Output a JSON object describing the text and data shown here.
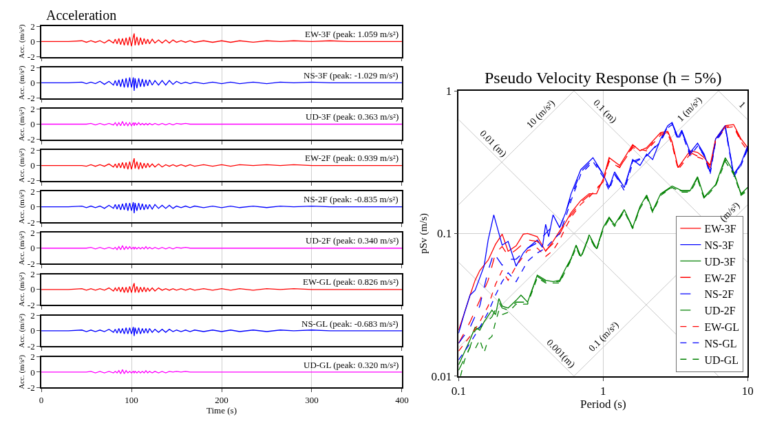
{
  "chart_data": [
    {
      "type": "line",
      "title": "Acceleration",
      "ylabel": "Acc. (m/s²)",
      "color": "#ff0000",
      "xlim": [
        0,
        400
      ],
      "ylim": [
        -2,
        2
      ],
      "xticks": [
        0,
        100,
        200,
        300,
        400
      ],
      "yticks": [
        -2,
        0,
        2
      ],
      "grid": "x",
      "tick_labels": "y",
      "annotations": [
        "EW-3F (peak: 1.059 m/s²)"
      ],
      "x": [
        0,
        30,
        45,
        50,
        55,
        60,
        65,
        70,
        75,
        80,
        82,
        84,
        86,
        88,
        90,
        92,
        94,
        96,
        98,
        100,
        102,
        103,
        104,
        106,
        108,
        110,
        112,
        114,
        116,
        118,
        120,
        123,
        126,
        130,
        134,
        138,
        142,
        146,
        150,
        155,
        160,
        165,
        170,
        180,
        190,
        200,
        210,
        220,
        235,
        250,
        265,
        280,
        300,
        320,
        340,
        360,
        380,
        400
      ],
      "values": [
        0,
        0,
        0.1,
        -0.1,
        0.1,
        -0.1,
        0.1,
        -0.2,
        0.2,
        -0.2,
        0.3,
        -0.3,
        0.4,
        -0.4,
        0.4,
        -0.5,
        0.5,
        -0.5,
        0.6,
        -0.6,
        0.6,
        1.059,
        -0.5,
        0.6,
        -0.5,
        0.5,
        -0.4,
        0.4,
        -0.3,
        0.3,
        -0.3,
        0.3,
        -0.2,
        0.2,
        -0.2,
        0.2,
        -0.2,
        0.2,
        -0.1,
        0.1,
        -0.1,
        0.1,
        -0.1,
        0.1,
        -0.1,
        0.1,
        -0.1,
        0.1,
        -0.1,
        0.1,
        0,
        0.1,
        0,
        0.1,
        0,
        0,
        0,
        0
      ]
    },
    {
      "type": "line",
      "ylabel": "Acc. (m/s²)",
      "color": "#0000ff",
      "xlim": [
        0,
        400
      ],
      "ylim": [
        -2,
        2
      ],
      "xticks": [
        0,
        100,
        200,
        300,
        400
      ],
      "yticks": [
        -2,
        0,
        2
      ],
      "grid": "x",
      "tick_labels": "y",
      "annotations": [
        "NS-3F (peak: -1.029 m/s²)"
      ],
      "x": [
        0,
        30,
        45,
        50,
        55,
        60,
        65,
        70,
        75,
        80,
        82,
        84,
        86,
        88,
        90,
        92,
        94,
        96,
        98,
        100,
        102,
        103,
        104,
        106,
        108,
        110,
        112,
        114,
        116,
        118,
        120,
        123,
        126,
        130,
        134,
        138,
        142,
        146,
        150,
        155,
        160,
        165,
        170,
        180,
        190,
        200,
        210,
        220,
        235,
        250,
        265,
        280,
        300,
        320,
        340,
        360,
        380,
        400
      ],
      "values": [
        0,
        0,
        0.1,
        -0.1,
        0.1,
        -0.1,
        0.2,
        -0.2,
        0.2,
        -0.3,
        0.3,
        -0.4,
        0.4,
        -0.5,
        0.5,
        -0.6,
        0.6,
        -0.6,
        0.7,
        -0.6,
        0.7,
        -1.029,
        0.6,
        -0.7,
        0.6,
        -0.5,
        0.5,
        -0.5,
        0.4,
        -0.4,
        0.4,
        -0.3,
        0.3,
        -0.3,
        0.3,
        -0.3,
        0.3,
        -0.2,
        0.2,
        -0.1,
        0.1,
        -0.1,
        0.1,
        -0.1,
        0.1,
        -0.1,
        0.1,
        -0.1,
        0.1,
        -0.1,
        0.1,
        0,
        0.1,
        0,
        0,
        0,
        0,
        0
      ]
    },
    {
      "type": "line",
      "ylabel": "Acc. (m/s²)",
      "color": "#ff00ff",
      "xlim": [
        0,
        400
      ],
      "ylim": [
        -2,
        2
      ],
      "xticks": [
        0,
        100,
        200,
        300,
        400
      ],
      "yticks": [
        -2,
        0,
        2
      ],
      "grid": "x",
      "tick_labels": "y",
      "annotations": [
        "UD-3F (peak: 0.363 m/s²)"
      ],
      "x": [
        0,
        30,
        45,
        50,
        55,
        60,
        65,
        70,
        75,
        80,
        82,
        84,
        86,
        88,
        90,
        92,
        94,
        96,
        98,
        100,
        102,
        103,
        104,
        106,
        108,
        110,
        112,
        114,
        116,
        118,
        120,
        123,
        126,
        130,
        134,
        138,
        142,
        146,
        150,
        155,
        160,
        165,
        170,
        180,
        190,
        200,
        210,
        220,
        235,
        250,
        265,
        280,
        300,
        320,
        340,
        360,
        380,
        400
      ],
      "values": [
        0,
        0,
        0,
        0,
        0.1,
        -0.1,
        0.1,
        -0.1,
        0.1,
        -0.1,
        0.2,
        -0.2,
        0.2,
        -0.2,
        0.363,
        -0.2,
        0.2,
        -0.2,
        0.2,
        -0.2,
        0.2,
        -0.2,
        0.2,
        -0.1,
        0.2,
        -0.1,
        0.1,
        -0.1,
        0.1,
        -0.1,
        0.1,
        -0.1,
        0.1,
        -0.1,
        0.1,
        -0.1,
        0.1,
        -0.1,
        0.1,
        0,
        0.1,
        0,
        0,
        0,
        0,
        0,
        0,
        0,
        0,
        0,
        0,
        0,
        0,
        0,
        0,
        0,
        0,
        0
      ]
    },
    {
      "type": "line",
      "ylabel": "Acc. (m/s²)",
      "color": "#ff0000",
      "xlim": [
        0,
        400
      ],
      "ylim": [
        -2,
        2
      ],
      "xticks": [
        0,
        100,
        200,
        300,
        400
      ],
      "yticks": [
        -2,
        0,
        2
      ],
      "grid": "x",
      "tick_labels": "y",
      "annotations": [
        "EW-2F (peak: 0.939 m/s²)"
      ],
      "x": [
        0,
        30,
        45,
        50,
        55,
        60,
        65,
        70,
        75,
        80,
        82,
        84,
        86,
        88,
        90,
        92,
        94,
        96,
        98,
        100,
        102,
        103,
        104,
        106,
        108,
        110,
        112,
        114,
        116,
        118,
        120,
        123,
        126,
        130,
        134,
        138,
        142,
        146,
        150,
        155,
        160,
        165,
        170,
        180,
        190,
        200,
        210,
        220,
        235,
        250,
        265,
        280,
        300,
        320,
        340,
        360,
        380,
        400
      ],
      "values": [
        0,
        0,
        0,
        -0.1,
        0.1,
        -0.1,
        0.1,
        -0.1,
        0.2,
        -0.2,
        0.2,
        -0.3,
        0.3,
        -0.3,
        0.4,
        -0.4,
        0.4,
        -0.5,
        0.5,
        -0.5,
        0.5,
        0.939,
        -0.4,
        0.5,
        -0.5,
        0.4,
        -0.4,
        0.3,
        -0.3,
        0.3,
        -0.2,
        0.2,
        -0.2,
        0.2,
        -0.2,
        0.1,
        -0.1,
        0.1,
        -0.1,
        0.1,
        -0.1,
        0.1,
        -0.1,
        0.1,
        -0.1,
        0.1,
        -0.1,
        0.1,
        0,
        0.1,
        0,
        0.1,
        0,
        0,
        0,
        0,
        0,
        0
      ]
    },
    {
      "type": "line",
      "ylabel": "Acc. (m/s²)",
      "color": "#0000ff",
      "xlim": [
        0,
        400
      ],
      "ylim": [
        -2,
        2
      ],
      "xticks": [
        0,
        100,
        200,
        300,
        400
      ],
      "yticks": [
        -2,
        0,
        2
      ],
      "grid": "x",
      "tick_labels": "y",
      "annotations": [
        "NS-2F (peak: -0.835 m/s²)"
      ],
      "x": [
        0,
        30,
        45,
        50,
        55,
        60,
        65,
        70,
        75,
        80,
        82,
        84,
        86,
        88,
        90,
        92,
        94,
        96,
        98,
        100,
        102,
        103,
        104,
        106,
        108,
        110,
        112,
        114,
        116,
        118,
        120,
        123,
        126,
        130,
        134,
        138,
        142,
        146,
        150,
        155,
        160,
        165,
        170,
        180,
        190,
        200,
        210,
        220,
        235,
        250,
        265,
        280,
        300,
        320,
        340,
        360,
        380,
        400
      ],
      "values": [
        0,
        0,
        0.1,
        -0.1,
        0.1,
        -0.1,
        0.1,
        -0.2,
        0.2,
        -0.2,
        0.3,
        -0.3,
        0.3,
        -0.4,
        0.4,
        -0.4,
        0.5,
        -0.5,
        0.5,
        -0.5,
        0.6,
        -0.835,
        0.5,
        -0.5,
        0.5,
        -0.4,
        0.4,
        -0.4,
        0.3,
        -0.3,
        0.3,
        -0.3,
        0.3,
        -0.2,
        0.2,
        -0.2,
        0.2,
        -0.2,
        0.1,
        -0.1,
        0.1,
        -0.1,
        0.1,
        -0.1,
        0.1,
        -0.1,
        0.1,
        -0.1,
        0.1,
        -0.1,
        0.1,
        0,
        0.1,
        0,
        0,
        0,
        0,
        0
      ]
    },
    {
      "type": "line",
      "ylabel": "Acc. (m/s²)",
      "color": "#ff00ff",
      "xlim": [
        0,
        400
      ],
      "ylim": [
        -2,
        2
      ],
      "xticks": [
        0,
        100,
        200,
        300,
        400
      ],
      "yticks": [
        -2,
        0,
        2
      ],
      "grid": "x",
      "tick_labels": "y",
      "annotations": [
        "UD-2F (peak: 0.340 m/s²)"
      ],
      "x": [
        0,
        30,
        45,
        50,
        55,
        60,
        65,
        70,
        75,
        80,
        82,
        84,
        86,
        88,
        90,
        92,
        94,
        96,
        98,
        100,
        102,
        103,
        104,
        106,
        108,
        110,
        112,
        114,
        116,
        118,
        120,
        123,
        126,
        130,
        134,
        138,
        142,
        146,
        150,
        155,
        160,
        165,
        170,
        180,
        190,
        200,
        210,
        220,
        235,
        250,
        265,
        280,
        300,
        320,
        340,
        360,
        380,
        400
      ],
      "values": [
        0,
        0,
        0,
        0,
        0.1,
        -0.1,
        0.1,
        -0.1,
        0.1,
        -0.1,
        0.1,
        -0.2,
        0.2,
        -0.2,
        0.34,
        -0.2,
        0.2,
        -0.1,
        0.2,
        -0.1,
        0.1,
        -0.1,
        0.1,
        -0.1,
        0.1,
        -0.1,
        0.1,
        -0.1,
        0.2,
        -0.1,
        0.1,
        -0.1,
        0.1,
        -0.1,
        0.1,
        -0.1,
        0.1,
        -0.1,
        0.1,
        0,
        0.1,
        0,
        0,
        0,
        0,
        0,
        0,
        0,
        0,
        0,
        0,
        0,
        0,
        0,
        0,
        0,
        0,
        0
      ]
    },
    {
      "type": "line",
      "ylabel": "Acc. (m/s²)",
      "color": "#ff0000",
      "xlim": [
        0,
        400
      ],
      "ylim": [
        -2,
        2
      ],
      "xticks": [
        0,
        100,
        200,
        300,
        400
      ],
      "yticks": [
        -2,
        0,
        2
      ],
      "grid": "x",
      "tick_labels": "y",
      "annotations": [
        "EW-GL (peak: 0.826 m/s²)"
      ],
      "x": [
        0,
        30,
        45,
        50,
        55,
        60,
        65,
        70,
        75,
        80,
        82,
        84,
        86,
        88,
        90,
        92,
        94,
        96,
        98,
        100,
        102,
        103,
        104,
        106,
        108,
        110,
        112,
        114,
        116,
        118,
        120,
        123,
        126,
        130,
        134,
        138,
        142,
        146,
        150,
        155,
        160,
        165,
        170,
        180,
        190,
        200,
        210,
        220,
        235,
        250,
        265,
        280,
        300,
        320,
        340,
        360,
        380,
        400
      ],
      "values": [
        0,
        0,
        0.1,
        -0.1,
        0.1,
        -0.1,
        0.1,
        -0.1,
        0.2,
        -0.2,
        0.2,
        -0.2,
        0.3,
        -0.3,
        0.3,
        -0.4,
        0.3,
        -0.4,
        0.4,
        -0.4,
        0.5,
        0.826,
        -0.4,
        0.4,
        -0.4,
        0.3,
        -0.3,
        0.3,
        -0.3,
        0.2,
        -0.2,
        0.2,
        -0.2,
        0.2,
        -0.1,
        0.1,
        -0.1,
        0.1,
        -0.1,
        0.1,
        -0.1,
        0.1,
        -0.1,
        0.1,
        -0.1,
        0.1,
        -0.1,
        0.1,
        -0.1,
        0.1,
        0,
        0.1,
        0,
        0,
        0,
        0,
        0,
        0
      ]
    },
    {
      "type": "line",
      "ylabel": "Acc. (m/s²)",
      "color": "#0000ff",
      "xlim": [
        0,
        400
      ],
      "ylim": [
        -2,
        2
      ],
      "xticks": [
        0,
        100,
        200,
        300,
        400
      ],
      "yticks": [
        -2,
        0,
        2
      ],
      "grid": "x",
      "tick_labels": "y",
      "annotations": [
        "NS-GL (peak: -0.683 m/s²)"
      ],
      "x": [
        0,
        30,
        45,
        50,
        55,
        60,
        65,
        70,
        75,
        80,
        82,
        84,
        86,
        88,
        90,
        92,
        94,
        96,
        98,
        100,
        102,
        103,
        104,
        106,
        108,
        110,
        112,
        114,
        116,
        118,
        120,
        123,
        126,
        130,
        134,
        138,
        142,
        146,
        150,
        155,
        160,
        165,
        170,
        180,
        190,
        200,
        210,
        220,
        235,
        250,
        265,
        280,
        300,
        320,
        340,
        360,
        380,
        400
      ],
      "values": [
        0,
        0,
        0.1,
        -0.1,
        0.1,
        -0.1,
        0.1,
        -0.1,
        0.2,
        -0.2,
        0.2,
        -0.3,
        0.3,
        -0.3,
        0.3,
        -0.4,
        0.4,
        -0.4,
        0.4,
        -0.4,
        0.5,
        -0.683,
        0.4,
        -0.4,
        0.4,
        -0.4,
        0.3,
        -0.3,
        0.3,
        -0.3,
        0.3,
        -0.2,
        0.2,
        -0.2,
        0.2,
        -0.2,
        0.2,
        -0.1,
        0.1,
        -0.1,
        0.1,
        -0.1,
        0.1,
        -0.1,
        0.1,
        -0.1,
        0.1,
        -0.1,
        0.1,
        -0.1,
        0.1,
        0,
        0.1,
        0,
        0,
        0,
        0,
        0
      ]
    },
    {
      "type": "line",
      "ylabel": "Acc. (m/s²)",
      "xlabel": "Time (s)",
      "color": "#ff00ff",
      "xlim": [
        0,
        400
      ],
      "ylim": [
        -2,
        2
      ],
      "xticks": [
        0,
        100,
        200,
        300,
        400
      ],
      "yticks": [
        -2,
        0,
        2
      ],
      "grid": "x",
      "annotations": [
        "UD-GL (peak: 0.320 m/s²)"
      ],
      "x": [
        0,
        30,
        45,
        50,
        55,
        60,
        65,
        70,
        75,
        80,
        82,
        84,
        86,
        88,
        90,
        92,
        94,
        96,
        98,
        100,
        102,
        103,
        104,
        106,
        108,
        110,
        112,
        114,
        116,
        118,
        120,
        123,
        126,
        130,
        134,
        138,
        142,
        146,
        150,
        155,
        160,
        165,
        170,
        180,
        190,
        200,
        210,
        220,
        235,
        250,
        265,
        280,
        300,
        320,
        340,
        360,
        380,
        400
      ],
      "values": [
        0,
        0,
        0,
        0,
        0.1,
        -0.1,
        0.1,
        -0.1,
        0.1,
        -0.1,
        0.1,
        -0.1,
        0.2,
        -0.2,
        0.32,
        -0.2,
        0.2,
        -0.1,
        0.1,
        -0.1,
        0.1,
        -0.1,
        0.1,
        -0.1,
        0.1,
        -0.1,
        0.1,
        -0.1,
        0.2,
        -0.1,
        0.1,
        -0.1,
        0.1,
        -0.1,
        0.1,
        -0.1,
        0.1,
        0,
        0.1,
        0,
        0.1,
        0,
        0,
        0,
        0,
        0,
        0,
        0,
        0,
        0,
        0,
        0,
        0,
        0,
        0,
        0,
        0,
        0
      ]
    },
    {
      "type": "line",
      "title": "Pseudo Velocity Response (h = 5%)",
      "xlabel": "Period (s)",
      "ylabel": "pSv (m/s)",
      "log": "xy",
      "xlim": [
        0.1,
        10
      ],
      "ylim": [
        0.01,
        1
      ],
      "xticks": [
        0.1,
        1,
        10
      ],
      "yticks": [
        0.01,
        0.1,
        1
      ],
      "grid": true,
      "legend": "bottom right",
      "annotations": [
        {
          "text": "(m/s²)",
          "x": 8.2,
          "y": 0.1304
        }
      ],
      "series": [
        {
          "name": "0.01 (m)",
          "color": "#c8c8c8",
          "x": [
            0.1,
            0.16,
            6.28
          ],
          "values": [
            0.628,
            0.3925,
            0.01
          ]
        },
        {
          "name": "0.1 (m)",
          "color": "#c8c8c8",
          "x": [
            0.628,
            0.95,
            10
          ],
          "values": [
            1,
            0.661,
            0.0628
          ]
        },
        {
          "name": "0.001(m)",
          "color": "#c8c8c8",
          "x": [
            0.1,
            0.47,
            0.628
          ],
          "values": [
            0.0628,
            0.01336,
            0.01
          ]
        },
        {
          "name": "1",
          "color": "#c8c8c8",
          "x": [
            6.28,
            8.5,
            10
          ],
          "values": [
            1,
            0.739,
            0.628
          ]
        },
        {
          "name": "10 (m/s²)",
          "color": "#c8c8c8",
          "x": [
            0.1,
            0.4,
            0.628
          ],
          "values": [
            0.159,
            0.636,
            1
          ]
        },
        {
          "name": "1 (m/s²)",
          "color": "#c8c8c8",
          "x": [
            0.1,
            4.3,
            6.28
          ],
          "values": [
            0.0159,
            0.684,
            1
          ]
        },
        {
          "name": "0.1 (m/s²)",
          "color": "#c8c8c8",
          "x": [
            0.628,
            1.1,
            8.2,
            10
          ],
          "values": [
            0.01,
            0.0175,
            0.1304,
            0.159
          ]
        },
        {
          "name": "EW-3F",
          "color": "#ff0000",
          "line_style": "solid",
          "x": [
            0.1,
            0.11,
            0.12,
            0.13,
            0.14,
            0.15,
            0.16,
            0.18,
            0.2,
            0.22,
            0.25,
            0.28,
            0.3,
            0.35,
            0.4,
            0.45,
            0.5,
            0.55,
            0.6,
            0.7,
            0.8,
            0.9,
            1,
            1.1,
            1.3,
            1.6,
            1.8,
            2,
            2.5,
            2.8,
            3,
            3.3,
            4,
            4.5,
            5,
            5.5,
            6,
            7,
            8,
            9,
            10
          ],
          "values": [
            0.021,
            0.028,
            0.037,
            0.047,
            0.055,
            0.06,
            0.065,
            0.084,
            0.099,
            0.075,
            0.082,
            0.099,
            0.1,
            0.095,
            0.075,
            0.088,
            0.104,
            0.12,
            0.14,
            0.17,
            0.19,
            0.19,
            0.24,
            0.34,
            0.3,
            0.42,
            0.38,
            0.4,
            0.51,
            0.52,
            0.44,
            0.29,
            0.38,
            0.37,
            0.34,
            0.3,
            0.46,
            0.57,
            0.58,
            0.46,
            0.4
          ]
        },
        {
          "name": "NS-3F",
          "color": "#0000ff",
          "line_style": "solid",
          "x": [
            0.1,
            0.11,
            0.12,
            0.13,
            0.15,
            0.16,
            0.175,
            0.2,
            0.22,
            0.25,
            0.28,
            0.3,
            0.35,
            0.38,
            0.4,
            0.42,
            0.45,
            0.5,
            0.55,
            0.6,
            0.7,
            0.85,
            1,
            1.1,
            1.2,
            1.4,
            1.6,
            1.8,
            2,
            2.2,
            2.5,
            2.8,
            3,
            3.3,
            3.5,
            4,
            4.5,
            5,
            5.5,
            6,
            7,
            8,
            9,
            10
          ],
          "values": [
            0.02,
            0.028,
            0.037,
            0.04,
            0.059,
            0.09,
            0.135,
            0.083,
            0.088,
            0.059,
            0.073,
            0.079,
            0.09,
            0.08,
            0.116,
            0.095,
            0.135,
            0.11,
            0.14,
            0.19,
            0.28,
            0.34,
            0.26,
            0.21,
            0.27,
            0.21,
            0.33,
            0.3,
            0.36,
            0.33,
            0.46,
            0.57,
            0.6,
            0.47,
            0.53,
            0.37,
            0.43,
            0.36,
            0.27,
            0.46,
            0.57,
            0.26,
            0.31,
            0.41
          ]
        },
        {
          "name": "UD-3F",
          "color": "#008000",
          "line_style": "solid",
          "x": [
            0.1,
            0.12,
            0.13,
            0.14,
            0.15,
            0.17,
            0.18,
            0.19,
            0.2,
            0.22,
            0.25,
            0.27,
            0.3,
            0.35,
            0.4,
            0.45,
            0.5,
            0.55,
            0.6,
            0.65,
            0.7,
            0.75,
            0.8,
            0.9,
            1,
            1.1,
            1.2,
            1.4,
            1.6,
            1.8,
            2,
            2.2,
            2.5,
            3,
            3.5,
            4,
            4.5,
            5,
            6,
            7,
            8,
            9,
            10
          ],
          "values": [
            0.012,
            0.018,
            0.022,
            0.021,
            0.024,
            0.029,
            0.027,
            0.035,
            0.031,
            0.03,
            0.034,
            0.037,
            0.033,
            0.051,
            0.047,
            0.046,
            0.047,
            0.057,
            0.067,
            0.083,
            0.069,
            0.08,
            0.098,
            0.078,
            0.11,
            0.13,
            0.115,
            0.147,
            0.11,
            0.155,
            0.186,
            0.144,
            0.19,
            0.215,
            0.2,
            0.2,
            0.25,
            0.18,
            0.22,
            0.34,
            0.27,
            0.19,
            0.21
          ]
        },
        {
          "name": "EW-2F",
          "color": "#ff0000",
          "line_style": "dashed",
          "x": [
            0.1,
            0.12,
            0.14,
            0.16,
            0.18,
            0.2,
            0.22,
            0.25,
            0.3,
            0.35,
            0.4,
            0.45,
            0.5,
            0.55,
            0.6,
            0.7,
            0.8,
            1,
            1.1,
            1.3,
            1.6,
            2,
            2.5,
            2.8,
            3,
            3.3,
            4,
            5,
            5.5,
            6,
            7,
            8,
            9,
            10
          ],
          "values": [
            0.017,
            0.024,
            0.034,
            0.047,
            0.073,
            0.081,
            0.07,
            0.077,
            0.09,
            0.088,
            0.076,
            0.085,
            0.099,
            0.12,
            0.135,
            0.165,
            0.185,
            0.23,
            0.33,
            0.29,
            0.41,
            0.39,
            0.5,
            0.51,
            0.43,
            0.29,
            0.37,
            0.33,
            0.3,
            0.45,
            0.56,
            0.57,
            0.45,
            0.39
          ]
        },
        {
          "name": "NS-2F",
          "color": "#0000ff",
          "line_style": "dashed",
          "x": [
            0.1,
            0.12,
            0.14,
            0.16,
            0.175,
            0.2,
            0.22,
            0.25,
            0.3,
            0.35,
            0.4,
            0.45,
            0.5,
            0.55,
            0.6,
            0.7,
            0.85,
            1,
            1.1,
            1.2,
            1.4,
            1.6,
            2,
            2.5,
            2.8,
            3,
            3.3,
            3.5,
            4,
            4.5,
            5,
            5.5,
            6,
            7,
            8,
            9,
            10
          ],
          "values": [
            0.017,
            0.022,
            0.031,
            0.055,
            0.073,
            0.06,
            0.066,
            0.066,
            0.079,
            0.086,
            0.1,
            0.113,
            0.11,
            0.14,
            0.18,
            0.27,
            0.33,
            0.26,
            0.21,
            0.26,
            0.21,
            0.32,
            0.35,
            0.45,
            0.56,
            0.59,
            0.46,
            0.52,
            0.36,
            0.42,
            0.35,
            0.27,
            0.45,
            0.56,
            0.26,
            0.3,
            0.4
          ]
        },
        {
          "name": "UD-2F",
          "color": "#008000",
          "line_style": "dashed",
          "x": [
            0.1,
            0.12,
            0.13,
            0.15,
            0.17,
            0.19,
            0.2,
            0.22,
            0.25,
            0.3,
            0.35,
            0.4,
            0.5,
            0.55,
            0.6,
            0.65,
            0.7,
            0.8,
            0.9,
            1,
            1.1,
            1.2,
            1.4,
            1.6,
            1.8,
            2,
            2.2,
            2.5,
            3,
            3.5,
            4,
            4.5,
            5,
            6,
            7,
            8,
            9,
            10
          ],
          "values": [
            0.011,
            0.016,
            0.021,
            0.023,
            0.026,
            0.033,
            0.03,
            0.029,
            0.033,
            0.033,
            0.05,
            0.046,
            0.046,
            0.056,
            0.066,
            0.082,
            0.068,
            0.097,
            0.077,
            0.109,
            0.128,
            0.114,
            0.145,
            0.109,
            0.153,
            0.184,
            0.143,
            0.188,
            0.212,
            0.198,
            0.198,
            0.245,
            0.178,
            0.218,
            0.33,
            0.265,
            0.188,
            0.205
          ]
        },
        {
          "name": "EW-GL",
          "color": "#ff0000",
          "line_style": "dotted",
          "x": [
            0.1,
            0.12,
            0.14,
            0.16,
            0.18,
            0.2,
            0.22,
            0.25,
            0.3,
            0.35,
            0.4,
            0.45,
            0.5,
            0.55,
            0.6,
            0.7,
            0.8,
            1,
            1.1,
            1.3,
            1.6,
            2,
            2.5,
            2.8,
            3,
            3.3,
            4,
            5,
            5.5,
            6,
            7,
            8,
            9,
            10
          ],
          "values": [
            0.015,
            0.019,
            0.024,
            0.031,
            0.044,
            0.055,
            0.047,
            0.059,
            0.076,
            0.079,
            0.069,
            0.076,
            0.09,
            0.11,
            0.13,
            0.16,
            0.18,
            0.23,
            0.32,
            0.29,
            0.4,
            0.38,
            0.49,
            0.5,
            0.42,
            0.28,
            0.36,
            0.33,
            0.29,
            0.44,
            0.55,
            0.56,
            0.44,
            0.38
          ]
        },
        {
          "name": "NS-GL",
          "color": "#0000ff",
          "line_style": "dotted",
          "x": [
            0.1,
            0.12,
            0.14,
            0.16,
            0.18,
            0.2,
            0.22,
            0.25,
            0.3,
            0.35,
            0.4,
            0.45,
            0.5,
            0.55,
            0.6,
            0.7,
            0.85,
            1,
            1.1,
            1.2,
            1.4,
            1.6,
            2,
            2.5,
            2.8,
            3,
            3.3,
            3.5,
            4,
            4.5,
            5,
            5.5,
            6,
            7,
            8,
            9,
            10
          ],
          "values": [
            0.013,
            0.017,
            0.022,
            0.028,
            0.037,
            0.046,
            0.053,
            0.046,
            0.064,
            0.073,
            0.079,
            0.09,
            0.1,
            0.13,
            0.17,
            0.26,
            0.32,
            0.25,
            0.2,
            0.26,
            0.2,
            0.31,
            0.35,
            0.44,
            0.55,
            0.58,
            0.45,
            0.51,
            0.35,
            0.41,
            0.35,
            0.26,
            0.44,
            0.55,
            0.25,
            0.3,
            0.39
          ]
        },
        {
          "name": "UD-GL",
          "color": "#008000",
          "line_style": "dotted",
          "x": [
            0.103,
            0.11,
            0.12,
            0.13,
            0.14,
            0.15,
            0.16,
            0.17,
            0.18,
            0.19,
            0.2,
            0.22,
            0.25,
            0.3,
            0.35,
            0.4,
            0.5,
            0.55,
            0.6,
            0.65,
            0.7,
            0.8,
            0.9,
            1,
            1.1,
            1.2,
            1.4,
            1.6,
            1.8,
            2,
            2.2,
            2.5,
            3,
            3.5,
            4,
            4.5,
            5,
            6,
            7,
            8,
            9,
            10
          ],
          "values": [
            0.01,
            0.013,
            0.016,
            0.0155,
            0.018,
            0.0146,
            0.018,
            0.019,
            0.024,
            0.029,
            0.027,
            0.028,
            0.032,
            0.032,
            0.049,
            0.045,
            0.045,
            0.055,
            0.065,
            0.08,
            0.067,
            0.095,
            0.076,
            0.107,
            0.126,
            0.112,
            0.143,
            0.108,
            0.15,
            0.18,
            0.14,
            0.185,
            0.21,
            0.195,
            0.195,
            0.24,
            0.175,
            0.215,
            0.32,
            0.26,
            0.185,
            0.2
          ]
        }
      ]
    }
  ]
}
